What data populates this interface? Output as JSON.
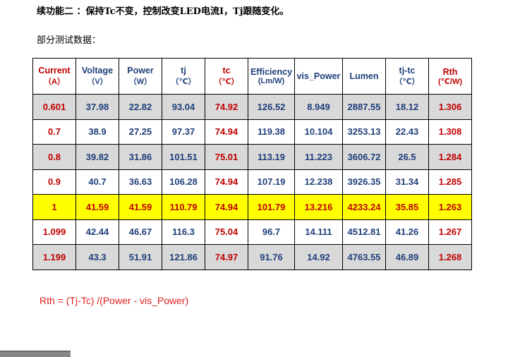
{
  "header": {
    "title": "续功能二 ：保持Tc不变，控制改变LED电流I，Tj跟随变化。",
    "subtitle": "部分测试数据："
  },
  "table": {
    "columns": [
      {
        "name": "Current",
        "unit": "（A）",
        "color": "#c00000"
      },
      {
        "name": "Voltage",
        "unit": "（V）",
        "color": "#1f3f7a"
      },
      {
        "name": "Power",
        "unit": "（W）",
        "color": "#1f3f7a"
      },
      {
        "name": "tj",
        "unit": "（℃）",
        "color": "#1f3f7a"
      },
      {
        "name": "tc",
        "unit": "（℃）",
        "color": "#c00000"
      },
      {
        "name": "Efficiency",
        "unit": "(Lm/W)",
        "color": "#1f3f7a"
      },
      {
        "name": "vis_Power",
        "color": "#1f3f7a"
      },
      {
        "name": "Lumen",
        "color": "#1f3f7a"
      },
      {
        "name": "tj-tc",
        "unit": "（℃）",
        "color": "#1f3f7a"
      },
      {
        "name": "Rth",
        "unit": "(℃/W)",
        "color": "#c00000"
      }
    ],
    "rows": [
      {
        "fill": "#d9d9d9",
        "cells": [
          "0.601",
          "37.98",
          "22.82",
          "93.04",
          "74.92",
          "126.52",
          "8.949",
          "2887.55",
          "18.12",
          "1.306"
        ]
      },
      {
        "fill": "#ffffff",
        "cells": [
          "0.7",
          "38.9",
          "27.25",
          "97.37",
          "74.94",
          "119.38",
          "10.104",
          "3253.13",
          "22.43",
          "1.308"
        ]
      },
      {
        "fill": "#d9d9d9",
        "cells": [
          "0.8",
          "39.82",
          "31.86",
          "101.51",
          "75.01",
          "113.19",
          "11.223",
          "3606.72",
          "26.5",
          "1.284"
        ]
      },
      {
        "fill": "#ffffff",
        "cells": [
          "0.9",
          "40.7",
          "36.63",
          "106.28",
          "74.94",
          "107.19",
          "12.238",
          "3926.35",
          "31.34",
          "1.285"
        ]
      },
      {
        "fill": "#ffff00",
        "text_color": "#c00000",
        "cells": [
          "1",
          "41.59",
          "41.59",
          "110.79",
          "74.94",
          "101.79",
          "13.216",
          "4233.24",
          "35.85",
          "1.263"
        ]
      },
      {
        "fill": "#ffffff",
        "cells": [
          "1.099",
          "42.44",
          "46.67",
          "116.3",
          "75.04",
          "96.7",
          "14.111",
          "4512.81",
          "41.26",
          "1.267"
        ]
      },
      {
        "fill": "#d9d9d9",
        "cells": [
          "1.199",
          "43.3",
          "51.91",
          "121.86",
          "74.97",
          "91.76",
          "14.92",
          "4763.55",
          "46.89",
          "1.268"
        ]
      }
    ]
  },
  "formula": "Rth = (Tj-Tc) /(Power - vis_Power)"
}
